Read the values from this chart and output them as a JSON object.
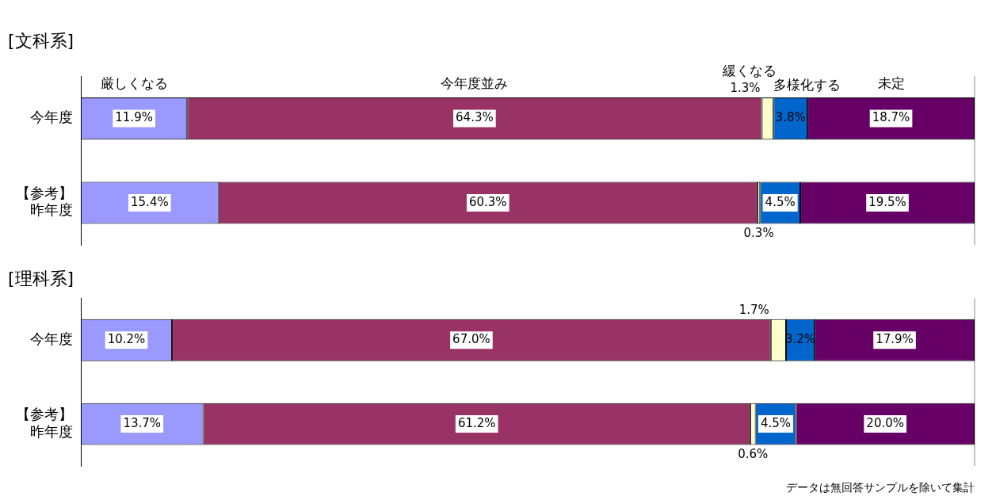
{
  "chart_data": [
    {
      "type": "bar",
      "orientation": "horizontal",
      "stacked": true,
      "title": "[文科系]",
      "categories": [
        "今年度",
        "【参考】昨年度"
      ],
      "xlim": [
        0,
        100
      ],
      "tick_labels": "y",
      "grid": false,
      "legend": false,
      "series": [
        {
          "name": "厳しくなる",
          "color": "#9999ff",
          "values": [
            11.9,
            15.4
          ],
          "value_labels": [
            "11.9%",
            "15.4%"
          ]
        },
        {
          "name": "今年度並み",
          "color": "#993366",
          "values": [
            64.3,
            60.3
          ],
          "value_labels": [
            "64.3%",
            "60.3%"
          ]
        },
        {
          "name": "緩くなる",
          "color": "#ffffcc",
          "values": [
            1.3,
            0.3
          ],
          "value_labels": [
            "1.3%",
            "0.3%"
          ]
        },
        {
          "name": "多様化する",
          "color": "#0066cc",
          "values": [
            3.8,
            4.5
          ],
          "value_labels": [
            "3.8%",
            "4.5%"
          ]
        },
        {
          "name": "未定",
          "color": "#660066",
          "values": [
            18.7,
            19.5
          ],
          "value_labels": [
            "18.7%",
            "19.5%"
          ]
        }
      ]
    },
    {
      "type": "bar",
      "orientation": "horizontal",
      "stacked": true,
      "title": "[理科系]",
      "categories": [
        "今年度",
        "【参考】昨年度"
      ],
      "xlim": [
        0,
        100
      ],
      "tick_labels": "y",
      "grid": false,
      "legend": false,
      "annotations": [
        "データは無回答サンプルを除いて集計"
      ],
      "series": [
        {
          "color": "#9999ff",
          "values": [
            10.2,
            13.7
          ],
          "value_labels": [
            "10.2%",
            "13.7%"
          ]
        },
        {
          "color": "#993366",
          "values": [
            67.0,
            61.2
          ],
          "value_labels": [
            "67.0%",
            "61.2%"
          ]
        },
        {
          "color": "#ffffcc",
          "values": [
            1.7,
            0.6
          ],
          "value_labels": [
            "1.7%",
            "0.6%"
          ]
        },
        {
          "color": "#0066cc",
          "values": [
            3.2,
            4.5
          ],
          "value_labels": [
            "3.2%",
            "4.5%"
          ]
        },
        {
          "color": "#660066",
          "values": [
            17.9,
            20.0
          ],
          "value_labels": [
            "17.9%",
            "20.0%"
          ]
        }
      ]
    }
  ]
}
